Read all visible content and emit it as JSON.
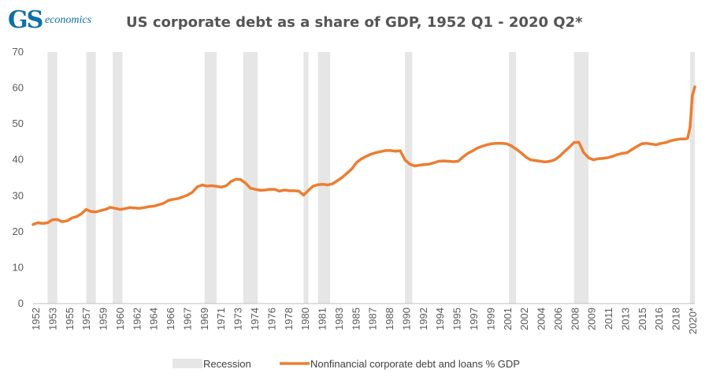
{
  "header": {
    "logo_main": "GS",
    "logo_sub": "economics",
    "title": "US corporate debt as a share of GDP, 1952 Q1 - 2020 Q2*"
  },
  "chart_data": {
    "type": "line",
    "title": "US corporate debt as a share of GDP, 1952 Q1 - 2020 Q2*",
    "xlabel": "",
    "ylabel": "",
    "ylim": [
      0,
      70
    ],
    "yticks": [
      0,
      10,
      20,
      30,
      40,
      50,
      60,
      70
    ],
    "xlim": [
      1952.0,
      2020.5
    ],
    "xtick_labels": [
      "1952",
      "1953",
      "1955",
      "1957",
      "1959",
      "1960",
      "1962",
      "1964",
      "1966",
      "1967",
      "1969",
      "1971",
      "1973",
      "1974",
      "1976",
      "1978",
      "1980",
      "1981",
      "1983",
      "1985",
      "1987",
      "1988",
      "1990",
      "1992",
      "1994",
      "1995",
      "1997",
      "1999",
      "2001",
      "2002",
      "2004",
      "2006",
      "2008",
      "2009",
      "2011",
      "2013",
      "2015",
      "2016",
      "2018",
      "2020*"
    ],
    "grid": false,
    "legend_position": "bottom",
    "colors": {
      "line": "#ed7d31",
      "recession": "#e6e6e6",
      "axis": "#bfbfbf"
    },
    "recessions": [
      {
        "start": 1953.5,
        "end": 1954.5
      },
      {
        "start": 1957.5,
        "end": 1958.5
      },
      {
        "start": 1960.25,
        "end": 1961.25
      },
      {
        "start": 1969.75,
        "end": 1971.0
      },
      {
        "start": 1973.75,
        "end": 1975.25
      },
      {
        "start": 1980.0,
        "end": 1980.5
      },
      {
        "start": 1981.5,
        "end": 1982.75
      },
      {
        "start": 1990.5,
        "end": 1991.25
      },
      {
        "start": 2001.25,
        "end": 2002.0
      },
      {
        "start": 2008.0,
        "end": 2009.5
      },
      {
        "start": 2020.0,
        "end": 2020.5
      }
    ],
    "series": [
      {
        "name": "Nonfinancial corporate debt and loans % GDP",
        "x": [
          1952.0,
          1952.5,
          1953.0,
          1953.5,
          1954.0,
          1954.5,
          1955.0,
          1955.5,
          1956.0,
          1956.5,
          1957.0,
          1957.5,
          1958.0,
          1958.5,
          1959.0,
          1959.5,
          1960.0,
          1960.5,
          1961.0,
          1961.5,
          1962.0,
          1962.5,
          1963.0,
          1963.5,
          1964.0,
          1964.5,
          1965.0,
          1965.5,
          1966.0,
          1966.5,
          1967.0,
          1967.5,
          1968.0,
          1968.5,
          1969.0,
          1969.5,
          1970.0,
          1970.5,
          1971.0,
          1971.5,
          1972.0,
          1972.5,
          1973.0,
          1973.5,
          1974.0,
          1974.5,
          1975.0,
          1975.5,
          1976.0,
          1976.5,
          1977.0,
          1977.5,
          1978.0,
          1978.5,
          1979.0,
          1979.5,
          1980.0,
          1980.5,
          1981.0,
          1981.5,
          1982.0,
          1982.5,
          1983.0,
          1983.5,
          1984.0,
          1984.5,
          1985.0,
          1985.5,
          1986.0,
          1986.5,
          1987.0,
          1987.5,
          1988.0,
          1988.5,
          1989.0,
          1989.5,
          1990.0,
          1990.5,
          1991.0,
          1991.5,
          1992.0,
          1992.5,
          1993.0,
          1993.5,
          1994.0,
          1994.5,
          1995.0,
          1995.5,
          1996.0,
          1996.5,
          1997.0,
          1997.5,
          1998.0,
          1998.5,
          1999.0,
          1999.5,
          2000.0,
          2000.5,
          2001.0,
          2001.5,
          2002.0,
          2002.5,
          2003.0,
          2003.5,
          2004.0,
          2004.5,
          2005.0,
          2005.5,
          2006.0,
          2006.5,
          2007.0,
          2007.5,
          2008.0,
          2008.5,
          2009.0,
          2009.5,
          2010.0,
          2010.5,
          2011.0,
          2011.5,
          2012.0,
          2012.5,
          2013.0,
          2013.5,
          2014.0,
          2014.5,
          2015.0,
          2015.5,
          2016.0,
          2016.5,
          2017.0,
          2017.5,
          2018.0,
          2018.5,
          2019.0,
          2019.5,
          2019.75,
          2020.0,
          2020.25,
          2020.5
        ],
        "values": [
          22.0,
          22.5,
          22.3,
          22.5,
          23.3,
          23.4,
          22.8,
          23.0,
          23.8,
          24.2,
          25.0,
          26.2,
          25.6,
          25.5,
          25.9,
          26.2,
          26.8,
          26.5,
          26.2,
          26.4,
          26.7,
          26.6,
          26.5,
          26.7,
          27.0,
          27.1,
          27.5,
          27.9,
          28.7,
          29.0,
          29.2,
          29.7,
          30.2,
          31.0,
          32.5,
          33.0,
          32.7,
          32.8,
          32.6,
          32.4,
          32.8,
          34.0,
          34.6,
          34.5,
          33.5,
          32.1,
          31.8,
          31.5,
          31.6,
          31.8,
          31.8,
          31.3,
          31.6,
          31.4,
          31.4,
          31.3,
          30.2,
          31.5,
          32.7,
          33.1,
          33.2,
          33.0,
          33.3,
          34.2,
          35.1,
          36.3,
          37.5,
          39.3,
          40.3,
          41.0,
          41.6,
          42.0,
          42.3,
          42.6,
          42.6,
          42.4,
          42.5,
          40.0,
          38.8,
          38.3,
          38.5,
          38.7,
          38.8,
          39.2,
          39.6,
          39.7,
          39.6,
          39.5,
          39.6,
          40.8,
          41.8,
          42.5,
          43.3,
          43.8,
          44.2,
          44.5,
          44.6,
          44.6,
          44.5,
          43.9,
          43.0,
          42.0,
          40.8,
          40.0,
          39.8,
          39.6,
          39.4,
          39.6,
          40.0,
          41.0,
          42.3,
          43.5,
          44.8,
          44.9,
          42.0,
          40.6,
          40.0,
          40.3,
          40.4,
          40.6,
          41.0,
          41.5,
          41.8,
          42.0,
          42.9,
          43.7,
          44.5,
          44.6,
          44.4,
          44.2,
          44.6,
          44.8,
          45.3,
          45.6,
          45.8,
          45.8,
          46.0,
          49.0,
          58.0,
          60.3
        ]
      }
    ]
  },
  "legend": {
    "recession_label": "Recession",
    "line_label": "Nonfinancial corporate debt and loans % GDP"
  }
}
